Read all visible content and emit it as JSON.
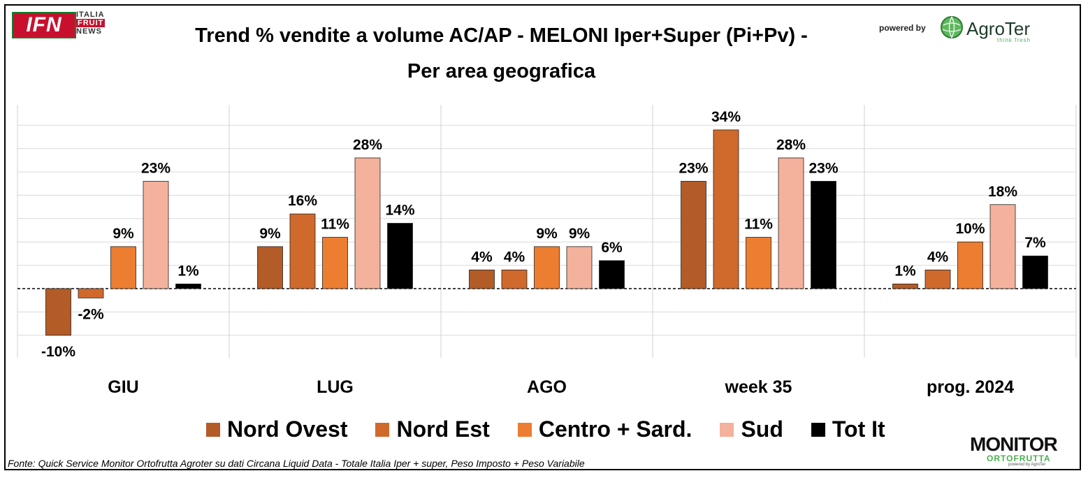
{
  "header": {
    "title_line1": "Trend % vendite a volume AC/AP - MELONI  Iper+Super (Pi+Pv) -",
    "title_line2": "Per area geografica",
    "ifn_logo": "IFN",
    "ifn_sub": [
      "ITALIA",
      "FRUIT",
      "NEWS"
    ],
    "powered_by": "powered by",
    "agroter_logo": "AgroTer",
    "agroter_tagline": "think fresh"
  },
  "footer": {
    "source": "Fonte: Quick Service Monitor Ortofrutta Agroter su dati Circana Liquid Data - Totale Italia Iper + super, Peso Imposto + Peso Variabile",
    "monitor_logo": "MONITOR",
    "monitor_sub": "ORTOFRUTTA",
    "monitor_powered": "powered by AgroTer"
  },
  "chart_data": {
    "type": "bar",
    "title": "Trend % vendite a volume AC/AP - MELONI  Iper+Super (Pi+Pv) - Per area geografica",
    "categories": [
      "GIU",
      "LUG",
      "AGO",
      "week 35",
      "prog. 2024"
    ],
    "series": [
      {
        "name": "Nord Ovest",
        "color": "#b35c27",
        "values": [
          -10,
          9,
          4,
          23,
          1
        ],
        "labels": [
          "-10%",
          "9%",
          "4%",
          "23%",
          "1%"
        ]
      },
      {
        "name": "Nord Est",
        "color": "#cf6a2c",
        "values": [
          -2,
          16,
          4,
          34,
          4
        ],
        "labels": [
          "-2%",
          "16%",
          "4%",
          "34%",
          "4%"
        ]
      },
      {
        "name": "Centro + Sard.",
        "color": "#ed7d31",
        "values": [
          9,
          11,
          9,
          11,
          10
        ],
        "labels": [
          "9%",
          "11%",
          "9%",
          "11%",
          "10%"
        ]
      },
      {
        "name": "Sud",
        "color": "#f4b19b",
        "values": [
          23,
          28,
          9,
          28,
          18
        ],
        "labels": [
          "23%",
          "28%",
          "9%",
          "28%",
          "18%"
        ]
      },
      {
        "name": "Tot It",
        "color": "#000000",
        "values": [
          1,
          14,
          6,
          23,
          7
        ],
        "labels": [
          "1%",
          "14%",
          "6%",
          "23%",
          "7%"
        ]
      }
    ],
    "ylim": [
      -15,
      40
    ],
    "grid": true,
    "legend_position": "bottom"
  }
}
